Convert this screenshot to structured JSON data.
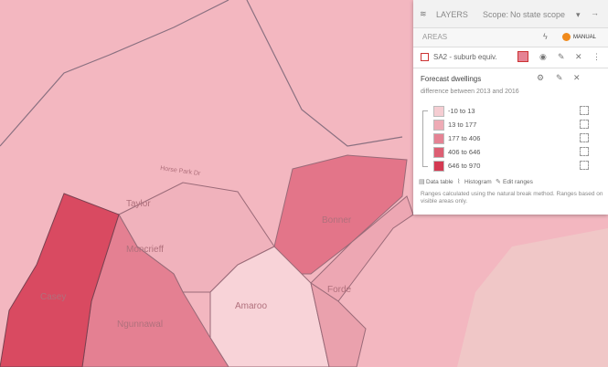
{
  "map": {
    "labels": [
      "Taylor",
      "Moncrieff",
      "Casey",
      "Ngunnawal",
      "Bonner",
      "Forde",
      "Amaroo",
      "Horse Park Dr"
    ]
  },
  "panel": {
    "title": "LAYERS",
    "scope_label": "Scope:",
    "scope_value": "No state scope",
    "section": "AREAS",
    "mode": "MANUAL",
    "layer_name": "SA2 - suburb equiv.",
    "style": {
      "title": "Forecast dwellings",
      "subtitle": "difference between 2013 and 2016",
      "ranges": [
        {
          "label": "-10 to 13",
          "color": "#f5cdd2"
        },
        {
          "label": "13 to 177",
          "color": "#eeabb5"
        },
        {
          "label": "177 to 406",
          "color": "#e58394"
        },
        {
          "label": "406 to 646",
          "color": "#dd5f73"
        },
        {
          "label": "646 to 970",
          "color": "#d43a52"
        }
      ],
      "actions": [
        "Data table",
        "Histogram",
        "Edit ranges"
      ],
      "note": "Ranges calculated using the natural break method. Ranges based on visible areas only."
    }
  }
}
